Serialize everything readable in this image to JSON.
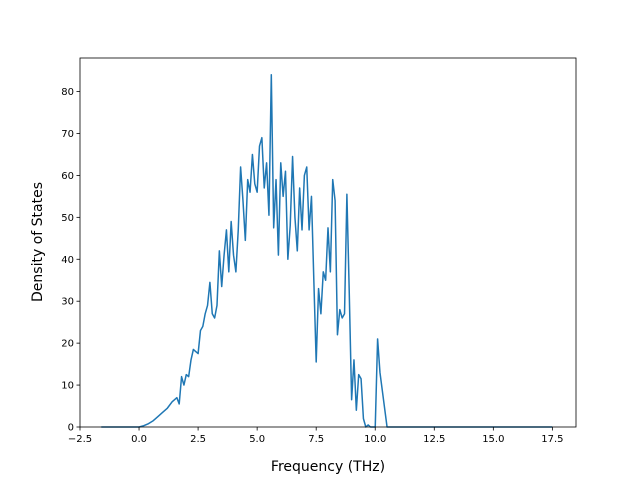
{
  "chart_data": {
    "type": "line",
    "title": "",
    "xlabel": "Frequency (THz)",
    "ylabel": "Density of States",
    "xlim": [
      -2.5,
      18.5
    ],
    "ylim": [
      0,
      88
    ],
    "grid": false,
    "xticks": [
      -2.5,
      0.0,
      2.5,
      5.0,
      7.5,
      10.0,
      12.5,
      15.0,
      17.5
    ],
    "xtick_labels": [
      "−2.5",
      "0.0",
      "2.5",
      "5.0",
      "7.5",
      "10.0",
      "12.5",
      "15.0",
      "17.5"
    ],
    "yticks": [
      0,
      10,
      20,
      30,
      40,
      50,
      60,
      70,
      80
    ],
    "ytick_labels": [
      "0",
      "10",
      "20",
      "30",
      "40",
      "50",
      "60",
      "70",
      "80"
    ],
    "line_color": "#1f77b4",
    "series": [
      {
        "x": [
          -1.6,
          -1.0,
          -0.5,
          0.0,
          0.2,
          0.4,
          0.6,
          0.8,
          1.0,
          1.2,
          1.4,
          1.6,
          1.7,
          1.8,
          1.9,
          2.0,
          2.1,
          2.2,
          2.3,
          2.4,
          2.5,
          2.6,
          2.7,
          2.8,
          2.9,
          3.0,
          3.1,
          3.2,
          3.3,
          3.4,
          3.5,
          3.6,
          3.7,
          3.8,
          3.9,
          4.0,
          4.1,
          4.2,
          4.3,
          4.4,
          4.5,
          4.6,
          4.7,
          4.8,
          4.9,
          5.0,
          5.1,
          5.2,
          5.3,
          5.4,
          5.5,
          5.6,
          5.7,
          5.8,
          5.9,
          6.0,
          6.1,
          6.2,
          6.3,
          6.4,
          6.5,
          6.6,
          6.7,
          6.8,
          6.9,
          7.0,
          7.1,
          7.2,
          7.3,
          7.4,
          7.5,
          7.6,
          7.7,
          7.8,
          7.9,
          8.0,
          8.1,
          8.2,
          8.3,
          8.4,
          8.5,
          8.6,
          8.7,
          8.8,
          8.9,
          9.0,
          9.1,
          9.2,
          9.3,
          9.4,
          9.5,
          9.6,
          9.7,
          9.8,
          9.9,
          10.0,
          10.1,
          10.2,
          10.5,
          12.0,
          14.0,
          16.0,
          17.5
        ],
        "y": [
          0,
          0,
          0,
          0,
          0.3,
          0.8,
          1.5,
          2.5,
          3.5,
          4.5,
          6.0,
          7.0,
          5.5,
          12.0,
          10.0,
          12.5,
          12.0,
          16.0,
          18.5,
          18.0,
          17.5,
          23.0,
          24.0,
          27.0,
          29.0,
          34.5,
          27.0,
          26.0,
          29.0,
          42.0,
          33.5,
          41.0,
          47.0,
          37.0,
          49.0,
          41.0,
          37.0,
          47.0,
          62.0,
          54.0,
          44.5,
          59.0,
          56.0,
          65.0,
          58.0,
          56.0,
          67.0,
          69.0,
          57.0,
          63.0,
          50.5,
          84.0,
          47.5,
          59.0,
          41.0,
          63.0,
          55.0,
          61.0,
          40.0,
          48.0,
          64.5,
          50.0,
          42.0,
          57.0,
          47.0,
          60.0,
          62.0,
          47.0,
          55.0,
          35.0,
          15.5,
          33.0,
          27.0,
          37.0,
          35.0,
          47.5,
          37.0,
          59.0,
          54.0,
          22.0,
          28.0,
          26.0,
          27.0,
          55.5,
          32.0,
          6.5,
          16.0,
          4.0,
          12.5,
          11.5,
          2.0,
          0,
          0.5,
          0,
          0,
          0,
          21.0,
          13.0,
          0,
          0,
          0,
          0,
          0
        ]
      }
    ]
  }
}
